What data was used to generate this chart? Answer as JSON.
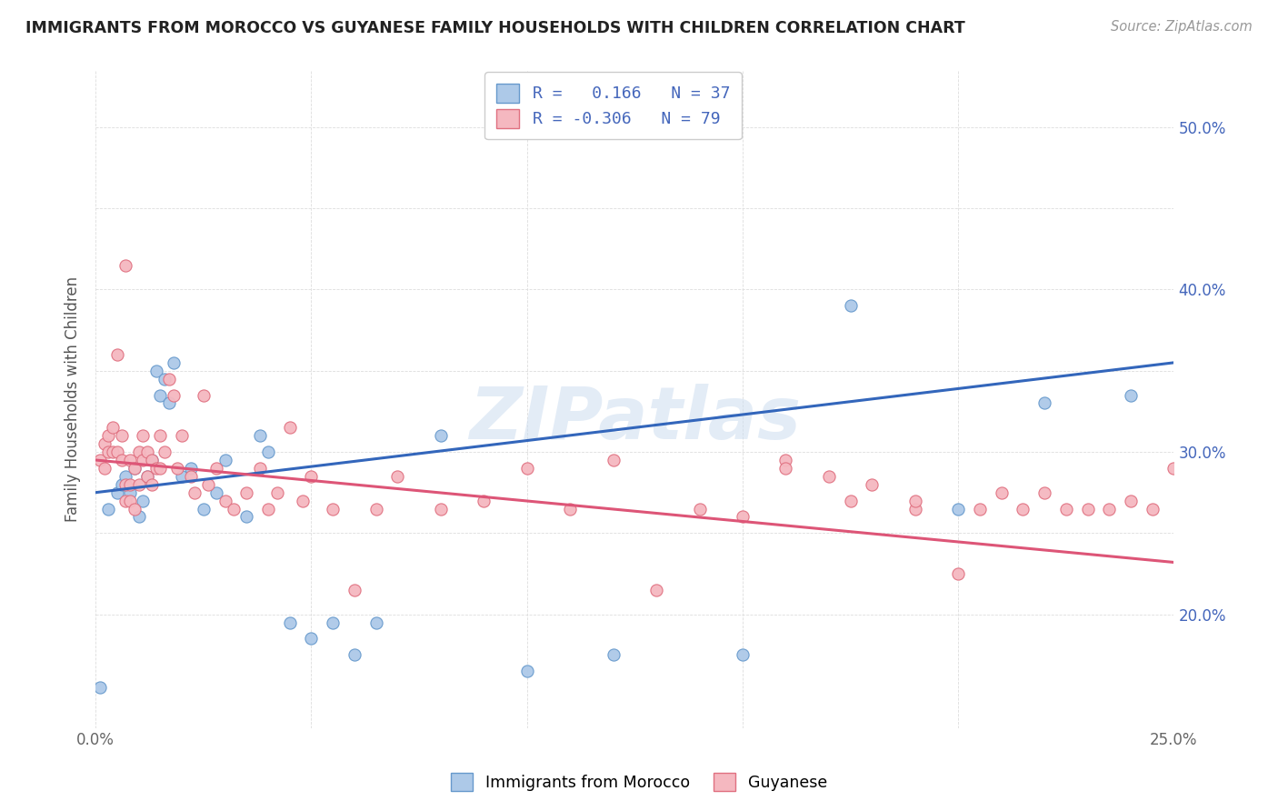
{
  "title": "IMMIGRANTS FROM MOROCCO VS GUYANESE FAMILY HOUSEHOLDS WITH CHILDREN CORRELATION CHART",
  "source": "Source: ZipAtlas.com",
  "ylabel": "Family Households with Children",
  "xlim": [
    0.0,
    0.25
  ],
  "ylim": [
    0.13,
    0.535
  ],
  "xticks": [
    0.0,
    0.05,
    0.1,
    0.15,
    0.2,
    0.25
  ],
  "yticks": [
    0.2,
    0.25,
    0.3,
    0.35,
    0.4,
    0.45,
    0.5
  ],
  "xtick_labels_show": [
    "0.0%",
    "25.0%"
  ],
  "xtick_labels_show_vals": [
    0.0,
    0.25
  ],
  "ytick_labels_show": [
    "20.0%",
    "30.0%",
    "40.0%",
    "50.0%"
  ],
  "ytick_labels_show_vals": [
    0.2,
    0.3,
    0.4,
    0.5
  ],
  "watermark": "ZIPatlas",
  "blue_scatter_color": "#adc9e8",
  "blue_scatter_edge": "#6699cc",
  "pink_scatter_color": "#f5b8c0",
  "pink_scatter_edge": "#e07080",
  "blue_line_color": "#3366bb",
  "pink_line_color": "#dd5577",
  "legend_text_color": "#4466bb",
  "tick_label_color": "#4466bb",
  "xtick_label_color": "#888888",
  "grid_color": "#dddddd",
  "morocco_x": [
    0.001,
    0.003,
    0.005,
    0.006,
    0.007,
    0.008,
    0.009,
    0.01,
    0.011,
    0.012,
    0.013,
    0.014,
    0.015,
    0.016,
    0.017,
    0.018,
    0.02,
    0.022,
    0.025,
    0.028,
    0.03,
    0.035,
    0.038,
    0.04,
    0.045,
    0.05,
    0.055,
    0.06,
    0.065,
    0.08,
    0.1,
    0.12,
    0.15,
    0.175,
    0.2,
    0.22,
    0.24
  ],
  "morocco_y": [
    0.155,
    0.265,
    0.275,
    0.28,
    0.285,
    0.275,
    0.29,
    0.26,
    0.27,
    0.285,
    0.295,
    0.35,
    0.335,
    0.345,
    0.33,
    0.355,
    0.285,
    0.29,
    0.265,
    0.275,
    0.295,
    0.26,
    0.31,
    0.3,
    0.195,
    0.185,
    0.195,
    0.175,
    0.195,
    0.31,
    0.165,
    0.175,
    0.175,
    0.39,
    0.265,
    0.33,
    0.335
  ],
  "guyanese_x": [
    0.001,
    0.002,
    0.002,
    0.003,
    0.003,
    0.004,
    0.004,
    0.005,
    0.005,
    0.006,
    0.006,
    0.007,
    0.007,
    0.007,
    0.008,
    0.008,
    0.008,
    0.009,
    0.009,
    0.01,
    0.01,
    0.011,
    0.011,
    0.012,
    0.012,
    0.013,
    0.013,
    0.014,
    0.015,
    0.015,
    0.016,
    0.017,
    0.018,
    0.019,
    0.02,
    0.022,
    0.023,
    0.025,
    0.026,
    0.028,
    0.03,
    0.032,
    0.035,
    0.038,
    0.04,
    0.042,
    0.045,
    0.048,
    0.05,
    0.055,
    0.06,
    0.065,
    0.07,
    0.08,
    0.09,
    0.1,
    0.11,
    0.12,
    0.13,
    0.14,
    0.15,
    0.16,
    0.17,
    0.18,
    0.19,
    0.2,
    0.21,
    0.22,
    0.23,
    0.24,
    0.25,
    0.16,
    0.175,
    0.19,
    0.205,
    0.215,
    0.225,
    0.235,
    0.245
  ],
  "guyanese_y": [
    0.295,
    0.29,
    0.305,
    0.3,
    0.31,
    0.315,
    0.3,
    0.36,
    0.3,
    0.295,
    0.31,
    0.28,
    0.27,
    0.415,
    0.27,
    0.28,
    0.295,
    0.265,
    0.29,
    0.28,
    0.3,
    0.31,
    0.295,
    0.3,
    0.285,
    0.28,
    0.295,
    0.29,
    0.29,
    0.31,
    0.3,
    0.345,
    0.335,
    0.29,
    0.31,
    0.285,
    0.275,
    0.335,
    0.28,
    0.29,
    0.27,
    0.265,
    0.275,
    0.29,
    0.265,
    0.275,
    0.315,
    0.27,
    0.285,
    0.265,
    0.215,
    0.265,
    0.285,
    0.265,
    0.27,
    0.29,
    0.265,
    0.295,
    0.215,
    0.265,
    0.26,
    0.295,
    0.285,
    0.28,
    0.265,
    0.225,
    0.275,
    0.275,
    0.265,
    0.27,
    0.29,
    0.29,
    0.27,
    0.27,
    0.265,
    0.265,
    0.265,
    0.265,
    0.265
  ]
}
